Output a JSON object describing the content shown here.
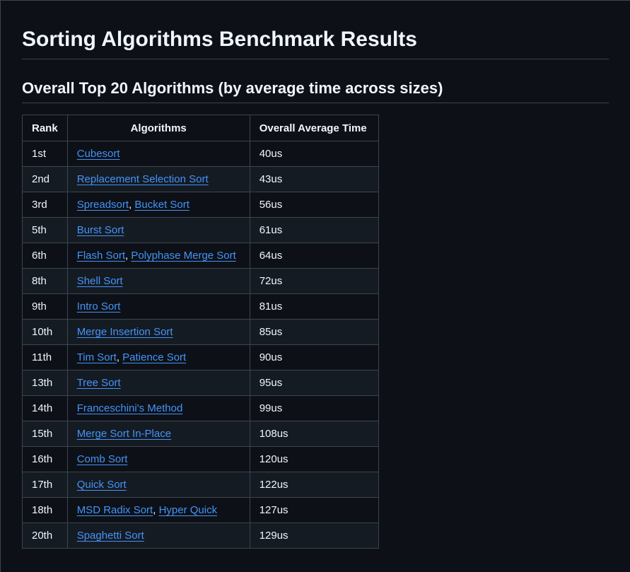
{
  "page": {
    "title": "Sorting Algorithms Benchmark Results",
    "section_title": "Overall Top 20 Algorithms (by average time across sizes)"
  },
  "table": {
    "headers": [
      "Rank",
      "Algorithms",
      "Overall Average Time"
    ],
    "rows": [
      {
        "rank": "1st",
        "algorithms": [
          "Cubesort"
        ],
        "time": "40us"
      },
      {
        "rank": "2nd",
        "algorithms": [
          "Replacement Selection Sort"
        ],
        "time": "43us"
      },
      {
        "rank": "3rd",
        "algorithms": [
          "Spreadsort",
          "Bucket Sort"
        ],
        "time": "56us"
      },
      {
        "rank": "5th",
        "algorithms": [
          "Burst Sort"
        ],
        "time": "61us"
      },
      {
        "rank": "6th",
        "algorithms": [
          "Flash Sort",
          "Polyphase Merge Sort"
        ],
        "time": "64us"
      },
      {
        "rank": "8th",
        "algorithms": [
          "Shell Sort"
        ],
        "time": "72us"
      },
      {
        "rank": "9th",
        "algorithms": [
          "Intro Sort"
        ],
        "time": "81us"
      },
      {
        "rank": "10th",
        "algorithms": [
          "Merge Insertion Sort"
        ],
        "time": "85us"
      },
      {
        "rank": "11th",
        "algorithms": [
          "Tim Sort",
          "Patience Sort"
        ],
        "time": "90us"
      },
      {
        "rank": "13th",
        "algorithms": [
          "Tree Sort"
        ],
        "time": "95us"
      },
      {
        "rank": "14th",
        "algorithms": [
          "Franceschini's Method"
        ],
        "time": "99us"
      },
      {
        "rank": "15th",
        "algorithms": [
          "Merge Sort In-Place"
        ],
        "time": "108us"
      },
      {
        "rank": "16th",
        "algorithms": [
          "Comb Sort"
        ],
        "time": "120us"
      },
      {
        "rank": "17th",
        "algorithms": [
          "Quick Sort"
        ],
        "time": "122us"
      },
      {
        "rank": "18th",
        "algorithms": [
          "MSD Radix Sort",
          "Hyper Quick"
        ],
        "time": "127us"
      },
      {
        "rank": "20th",
        "algorithms": [
          "Spaghetti Sort"
        ],
        "time": "129us"
      }
    ],
    "separator": ", "
  },
  "colors": {
    "background": "#0d1117",
    "row_alt": "#151b23",
    "border": "#3d444d",
    "text": "#f0f6fc",
    "link": "#4493f8"
  }
}
